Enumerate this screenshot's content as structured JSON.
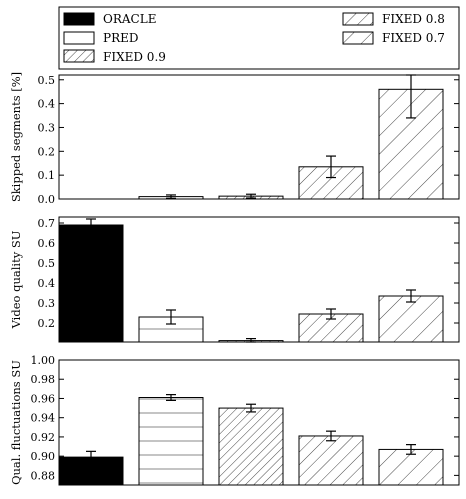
{
  "legend": {
    "entries": [
      {
        "label": "ORACLE",
        "pattern": "solid"
      },
      {
        "label": "PRED",
        "pattern": "hlines"
      },
      {
        "label": "FIXED 0.9",
        "pattern": "hatch-dense"
      },
      {
        "label": "FIXED 0.8",
        "pattern": "hatch-medium"
      },
      {
        "label": "FIXED 0.7",
        "pattern": "hatch-sparse"
      }
    ]
  },
  "chart_data": [
    {
      "type": "bar",
      "ylabel": "Skipped segments [%]",
      "categories": [
        "ORACLE",
        "PRED",
        "FIXED 0.9",
        "FIXED 0.8",
        "FIXED 0.7"
      ],
      "values": [
        0.0,
        0.01,
        0.012,
        0.135,
        0.46
      ],
      "errors": [
        0.0,
        0.007,
        0.008,
        0.045,
        0.12
      ],
      "ylim": [
        0,
        0.52
      ],
      "yticks": [
        "0.0",
        "0.1",
        "0.2",
        "0.3",
        "0.4",
        "0.5"
      ],
      "ytick_values": [
        0.0,
        0.1,
        0.2,
        0.3,
        0.4,
        0.5
      ]
    },
    {
      "type": "bar",
      "ylabel": "Video quality SU",
      "categories": [
        "ORACLE",
        "PRED",
        "FIXED 0.9",
        "FIXED 0.8",
        "FIXED 0.7"
      ],
      "values": [
        0.69,
        0.23,
        0.112,
        0.245,
        0.335
      ],
      "errors": [
        0.03,
        0.035,
        0.01,
        0.025,
        0.03
      ],
      "ylim": [
        0.105,
        0.73
      ],
      "yticks": [
        "0.2",
        "0.3",
        "0.4",
        "0.5",
        "0.6",
        "0.7"
      ],
      "ytick_values": [
        0.2,
        0.3,
        0.4,
        0.5,
        0.6,
        0.7
      ]
    },
    {
      "type": "bar",
      "ylabel": "Qual. fluctuations SU",
      "categories": [
        "ORACLE",
        "PRED",
        "FIXED 0.9",
        "FIXED 0.8",
        "FIXED 0.7"
      ],
      "values": [
        0.899,
        0.961,
        0.95,
        0.921,
        0.907
      ],
      "errors": [
        0.006,
        0.003,
        0.004,
        0.005,
        0.005
      ],
      "ylim": [
        0.87,
        1.0
      ],
      "yticks": [
        "0.88",
        "0.90",
        "0.92",
        "0.94",
        "0.96",
        "0.98",
        "1.00"
      ],
      "ytick_values": [
        0.88,
        0.9,
        0.92,
        0.94,
        0.96,
        0.98,
        1.0
      ]
    }
  ]
}
